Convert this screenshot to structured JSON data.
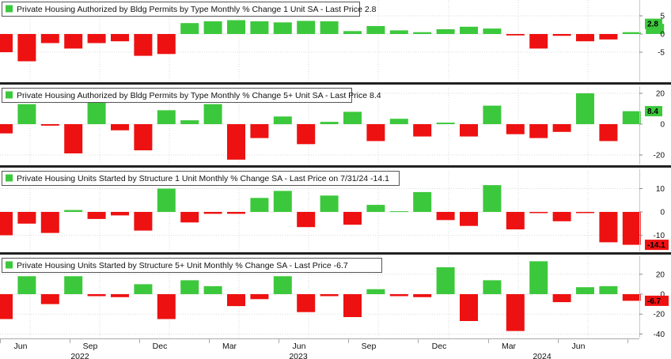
{
  "colors": {
    "positive": "#3cc83c",
    "negative": "#ee1111",
    "grid": "#d9d9d9",
    "separator": "#222222",
    "legend_border": "#555555",
    "axis_line": "#c8c8c8"
  },
  "chart_data": [
    {
      "type": "bar",
      "legend": "Private Housing Authorized by Bldg Permits by Type Monthly % Change 1 Unit SA - Last Price 2.8",
      "last_price_label": "2.8",
      "ylim": [
        -9,
        9
      ],
      "yticks": [
        5,
        0,
        -5
      ],
      "values": [
        -5.0,
        -7.5,
        -2.5,
        -4.0,
        -2.5,
        -2.0,
        -6.0,
        -5.5,
        3.0,
        3.5,
        3.8,
        3.5,
        3.2,
        3.6,
        3.5,
        0.8,
        2.2,
        1.0,
        0.5,
        1.3,
        2.0,
        1.5,
        -0.4,
        -4.0,
        -0.5,
        -2.0,
        -1.5,
        0.5,
        2.8
      ]
    },
    {
      "type": "bar",
      "legend": "Private Housing Authorized by Bldg Permits by Type Monthly % Change 5+ Unit SA - Last Price 8.4",
      "last_price_label": "8.4",
      "ylim": [
        -25,
        25
      ],
      "yticks": [
        20,
        0,
        -20
      ],
      "values": [
        -6.0,
        13.0,
        -1.0,
        -19.0,
        14.0,
        -4.0,
        -17.0,
        9.0,
        2.5,
        13.0,
        -23.0,
        -9.0,
        5.0,
        -13.0,
        1.5,
        8.0,
        -11.0,
        3.5,
        -8.0,
        1.0,
        -8.0,
        12.0,
        -6.5,
        -9.0,
        -5.0,
        20.0,
        -11.0,
        8.4,
        0
      ]
    },
    {
      "type": "bar",
      "legend": "Private Housing Units Started by Structure 1 Unit Monthly % Change SA - Last Price on 7/31/24 -14.1",
      "last_price_label": "-14.1",
      "ylim": [
        -18,
        18
      ],
      "yticks": [
        10,
        0,
        -10
      ],
      "values": [
        -10.0,
        -5.0,
        -9.0,
        0.8,
        -3.0,
        -1.5,
        -8.0,
        10.0,
        -4.5,
        -0.8,
        -0.8,
        6.0,
        9.0,
        -6.5,
        7.0,
        -5.5,
        3.0,
        0.3,
        8.5,
        -3.5,
        -6.0,
        11.5,
        -7.5,
        -0.5,
        -4.0,
        -0.5,
        -13.0,
        -14.1,
        0
      ]
    },
    {
      "type": "bar",
      "legend": "Private Housing Units Started by Structure 5+ Unit Monthly % Change SA - Last Price -6.7",
      "last_price_label": "-6.7",
      "ylim": [
        -42,
        35
      ],
      "yticks": [
        20,
        0,
        -20,
        -40
      ],
      "values": [
        -25.0,
        18.0,
        -10.0,
        18.0,
        -2.0,
        -3.0,
        10.0,
        -25.0,
        14.0,
        8.0,
        -12.0,
        -5.0,
        18.0,
        -18.0,
        -2.0,
        -23.0,
        5.0,
        -2.0,
        -3.0,
        27.0,
        -27.0,
        14.0,
        -37.0,
        33.0,
        -8.0,
        7.0,
        8.0,
        -6.7,
        0
      ]
    }
  ],
  "x_axis": {
    "month_labels": [
      "Jun",
      "Sep",
      "Dec",
      "Mar",
      "Jun",
      "Sep",
      "Dec",
      "Mar",
      "Jun"
    ],
    "year_labels": [
      "2022",
      "2023",
      "2024"
    ]
  }
}
